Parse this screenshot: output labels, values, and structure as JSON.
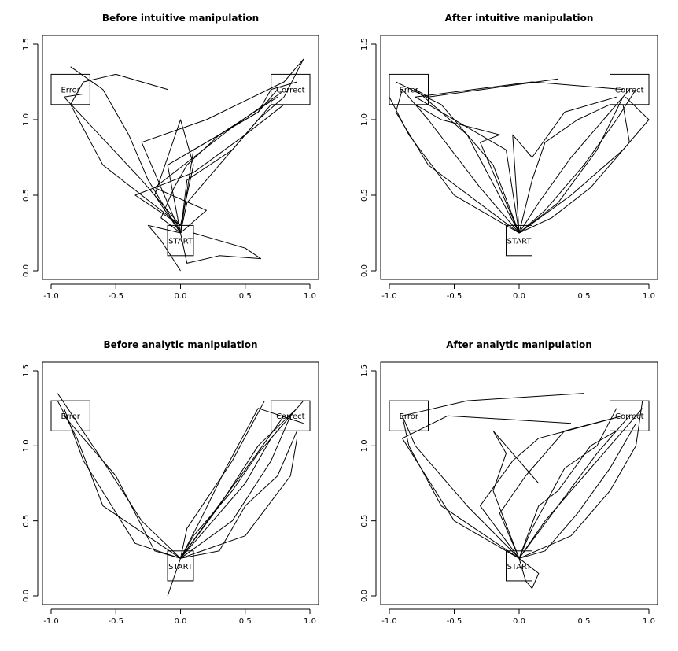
{
  "chart_data": [
    {
      "type": "line",
      "title": "Before intuitive manipulation",
      "xlim": [
        -1.0,
        1.0
      ],
      "ylim": [
        0.0,
        1.5
      ],
      "x_ticks": [
        "-1.0",
        "-0.5",
        "0.0",
        "0.5",
        "1.0"
      ],
      "y_ticks": [
        "0.0",
        "0.5",
        "1.0",
        "1.5"
      ],
      "boxes": [
        {
          "label": "Error",
          "x": [
            -1.0,
            -0.7
          ],
          "y": [
            1.1,
            1.3
          ]
        },
        {
          "label": "Correct",
          "x": [
            0.7,
            1.0
          ],
          "y": [
            1.1,
            1.3
          ]
        },
        {
          "label": "START",
          "x": [
            -0.1,
            0.1
          ],
          "y": [
            0.1,
            0.3
          ]
        }
      ],
      "series": [
        {
          "x": [
            0.0,
            -0.3,
            -0.9,
            -0.75
          ],
          "y": [
            0.3,
            0.6,
            1.15,
            1.17
          ]
        },
        {
          "x": [
            0.0,
            0.1,
            0.6,
            0.7,
            0.9
          ],
          "y": [
            0.25,
            0.8,
            1.05,
            1.2,
            1.25
          ]
        },
        {
          "x": [
            0.0,
            -0.25,
            -0.4,
            -0.6,
            -0.85
          ],
          "y": [
            0.25,
            0.6,
            0.9,
            1.2,
            1.35
          ]
        },
        {
          "x": [
            0.0,
            -0.1,
            0.2,
            0.6,
            0.75
          ],
          "y": [
            0.25,
            0.7,
            0.85,
            1.05,
            1.2
          ]
        },
        {
          "x": [
            0.0,
            0.05,
            0.3,
            0.62,
            0.5,
            0.1
          ],
          "y": [
            0.25,
            0.05,
            0.1,
            0.08,
            0.15,
            0.25
          ]
        },
        {
          "x": [
            0.0,
            -0.2,
            -0.1,
            0.0,
            0.1,
            0.0
          ],
          "y": [
            0.25,
            0.5,
            0.75,
            1.0,
            0.7,
            0.3
          ]
        },
        {
          "x": [
            0.0,
            -0.3,
            0.2,
            0.8,
            0.95,
            0.8
          ],
          "y": [
            0.25,
            0.85,
            1.0,
            1.25,
            1.4,
            1.15
          ]
        },
        {
          "x": [
            0.0,
            0.05,
            0.4,
            0.6,
            0.8
          ],
          "y": [
            0.25,
            0.6,
            0.8,
            1.0,
            1.15
          ]
        },
        {
          "x": [
            0.0,
            -0.35,
            0.1,
            0.5,
            0.8
          ],
          "y": [
            0.3,
            0.5,
            0.65,
            0.9,
            1.1
          ]
        },
        {
          "x": [
            0.0,
            -0.15,
            -0.05,
            0.05,
            0.3,
            0.75
          ],
          "y": [
            0.25,
            0.35,
            0.55,
            0.7,
            0.9,
            1.15
          ]
        },
        {
          "x": [
            0.0,
            0.2,
            -0.2,
            0.1,
            0.4,
            0.78
          ],
          "y": [
            0.25,
            0.4,
            0.55,
            0.75,
            0.95,
            1.18
          ]
        },
        {
          "x": [
            0.0,
            -0.25,
            -0.15,
            0.0
          ],
          "y": [
            0.25,
            0.3,
            0.2,
            0.0
          ]
        },
        {
          "x": [
            0.0,
            -0.6,
            -0.85,
            -0.75,
            -0.5,
            -0.1
          ],
          "y": [
            0.3,
            0.7,
            1.1,
            1.25,
            1.3,
            1.2
          ]
        },
        {
          "x": [
            0.0,
            0.05,
            0.25,
            0.55,
            0.7
          ],
          "y": [
            0.25,
            0.45,
            0.65,
            0.95,
            1.1
          ]
        }
      ]
    },
    {
      "type": "line",
      "title": "After intuitive manipulation",
      "xlim": [
        -1.0,
        1.0
      ],
      "ylim": [
        0.0,
        1.5
      ],
      "x_ticks": [
        "-1.0",
        "-0.5",
        "0.0",
        "0.5",
        "1.0"
      ],
      "y_ticks": [
        "0.0",
        "0.5",
        "1.0",
        "1.5"
      ],
      "boxes": [
        {
          "label": "Error",
          "x": [
            -1.0,
            -0.7
          ],
          "y": [
            1.1,
            1.3
          ]
        },
        {
          "label": "Correct",
          "x": [
            0.7,
            1.0
          ],
          "y": [
            1.1,
            1.3
          ]
        },
        {
          "label": "START",
          "x": [
            -0.1,
            0.1
          ],
          "y": [
            0.1,
            0.3
          ]
        }
      ],
      "series": [
        {
          "x": [
            0.0,
            -0.3,
            -0.7,
            -0.9
          ],
          "y": [
            0.25,
            0.55,
            1.0,
            1.2
          ]
        },
        {
          "x": [
            0.0,
            0.3,
            0.6,
            0.8
          ],
          "y": [
            0.25,
            0.45,
            0.8,
            1.15
          ]
        },
        {
          "x": [
            0.0,
            -0.2,
            -0.6,
            -0.95
          ],
          "y": [
            0.25,
            0.7,
            1.1,
            1.25
          ]
        },
        {
          "x": [
            0.0,
            0.2,
            0.5,
            0.75,
            0.9
          ],
          "y": [
            0.25,
            0.4,
            0.7,
            1.0,
            1.2
          ]
        },
        {
          "x": [
            0.0,
            -0.5,
            -0.85,
            -1.0
          ],
          "y": [
            0.25,
            0.5,
            0.9,
            1.15
          ]
        },
        {
          "x": [
            0.0,
            0.4,
            0.8,
            1.0,
            0.82
          ],
          "y": [
            0.25,
            0.5,
            0.8,
            1.0,
            1.15
          ]
        },
        {
          "x": [
            0.0,
            -0.4,
            -0.8,
            -0.7,
            0.3
          ],
          "y": [
            0.25,
            0.9,
            1.2,
            1.15,
            1.27
          ]
        },
        {
          "x": [
            0.0,
            -0.1,
            -0.6,
            -0.8,
            0.1,
            0.8
          ],
          "y": [
            0.25,
            0.8,
            1.05,
            1.15,
            1.25,
            1.2
          ]
        },
        {
          "x": [
            0.0,
            0.1,
            0.2,
            0.45,
            0.7
          ],
          "y": [
            0.25,
            0.6,
            0.85,
            1.0,
            1.1
          ]
        },
        {
          "x": [
            0.0,
            -0.05,
            0.1,
            0.35,
            0.75
          ],
          "y": [
            0.25,
            0.9,
            0.75,
            1.05,
            1.15
          ]
        },
        {
          "x": [
            0.0,
            -0.3,
            -0.15,
            -0.6,
            -0.8
          ],
          "y": [
            0.25,
            0.85,
            0.9,
            1.0,
            1.1
          ]
        },
        {
          "x": [
            0.0,
            0.25,
            0.55,
            0.85,
            0.8
          ],
          "y": [
            0.25,
            0.35,
            0.55,
            0.85,
            1.1
          ]
        },
        {
          "x": [
            0.0,
            -0.7,
            -0.95,
            -0.9
          ],
          "y": [
            0.25,
            0.7,
            1.05,
            1.2
          ]
        },
        {
          "x": [
            0.0,
            0.15,
            0.4,
            0.65,
            0.85
          ],
          "y": [
            0.25,
            0.45,
            0.75,
            1.0,
            1.2
          ]
        }
      ]
    },
    {
      "type": "line",
      "title": "Before analytic manipulation",
      "xlim": [
        -1.0,
        1.0
      ],
      "ylim": [
        0.0,
        1.5
      ],
      "x_ticks": [
        "-1.0",
        "-0.5",
        "0.0",
        "0.5",
        "1.0"
      ],
      "y_ticks": [
        "0.0",
        "0.5",
        "1.0",
        "1.5"
      ],
      "boxes": [
        {
          "label": "Error",
          "x": [
            -1.0,
            -0.7
          ],
          "y": [
            1.1,
            1.3
          ]
        },
        {
          "label": "Correct",
          "x": [
            0.7,
            1.0
          ],
          "y": [
            1.1,
            1.3
          ]
        },
        {
          "label": "START",
          "x": [
            -0.1,
            0.1
          ],
          "y": [
            0.1,
            0.3
          ]
        }
      ],
      "series": [
        {
          "x": [
            0.0,
            -0.3,
            -0.6,
            -0.95
          ],
          "y": [
            0.25,
            0.5,
            0.9,
            1.35
          ]
        },
        {
          "x": [
            0.0,
            0.3,
            0.6,
            0.9
          ],
          "y": [
            0.25,
            0.6,
            1.0,
            1.25
          ]
        },
        {
          "x": [
            0.0,
            -0.35,
            -0.75,
            -0.9
          ],
          "y": [
            0.25,
            0.35,
            0.9,
            1.25
          ]
        },
        {
          "x": [
            0.0,
            0.2,
            0.5,
            0.7,
            0.95
          ],
          "y": [
            0.25,
            0.45,
            0.75,
            1.05,
            1.3
          ]
        },
        {
          "x": [
            0.0,
            -0.2,
            -0.5,
            -0.9
          ],
          "y": [
            0.25,
            0.3,
            0.8,
            1.2
          ]
        },
        {
          "x": [
            0.0,
            0.4,
            0.7,
            0.85
          ],
          "y": [
            0.25,
            0.5,
            0.9,
            1.2
          ]
        },
        {
          "x": [
            0.0,
            -0.1
          ],
          "y": [
            0.25,
            0.0
          ]
        },
        {
          "x": [
            0.0,
            0.1,
            0.4,
            0.6,
            0.8
          ],
          "y": [
            0.25,
            0.4,
            0.7,
            0.95,
            1.15
          ]
        },
        {
          "x": [
            0.0,
            0.3,
            0.5,
            0.75,
            0.9
          ],
          "y": [
            0.25,
            0.3,
            0.6,
            0.8,
            1.1
          ]
        },
        {
          "x": [
            0.0,
            0.15,
            0.35,
            0.6,
            0.95
          ],
          "y": [
            0.25,
            0.5,
            0.85,
            1.25,
            1.15
          ]
        },
        {
          "x": [
            0.0,
            -0.6,
            -0.8,
            -0.95
          ],
          "y": [
            0.25,
            0.6,
            1.05,
            1.3
          ]
        },
        {
          "x": [
            0.0,
            0.25,
            0.55,
            0.8
          ],
          "y": [
            0.25,
            0.55,
            0.9,
            1.2
          ]
        },
        {
          "x": [
            0.0,
            0.05,
            0.4,
            0.65
          ],
          "y": [
            0.25,
            0.45,
            0.9,
            1.3
          ]
        },
        {
          "x": [
            0.0,
            0.5,
            0.85,
            0.9
          ],
          "y": [
            0.25,
            0.4,
            0.8,
            1.05
          ]
        }
      ]
    },
    {
      "type": "line",
      "title": "After analytic manipulation",
      "xlim": [
        -1.0,
        1.0
      ],
      "ylim": [
        0.0,
        1.5
      ],
      "x_ticks": [
        "-1.0",
        "-0.5",
        "0.0",
        "0.5",
        "1.0"
      ],
      "y_ticks": [
        "0.0",
        "0.5",
        "1.0",
        "1.5"
      ],
      "boxes": [
        {
          "label": "Error",
          "x": [
            -1.0,
            -0.7
          ],
          "y": [
            1.1,
            1.3
          ]
        },
        {
          "label": "Correct",
          "x": [
            0.7,
            1.0
          ],
          "y": [
            1.1,
            1.3
          ]
        },
        {
          "label": "START",
          "x": [
            -0.1,
            0.1
          ],
          "y": [
            0.1,
            0.3
          ]
        }
      ],
      "series": [
        {
          "x": [
            0.0,
            -0.4,
            -0.8,
            -0.9
          ],
          "y": [
            0.25,
            0.6,
            1.0,
            1.2
          ]
        },
        {
          "x": [
            0.0,
            0.3,
            0.6,
            0.85
          ],
          "y": [
            0.25,
            0.6,
            0.95,
            1.2
          ]
        },
        {
          "x": [
            0.0,
            -0.6,
            -0.85,
            -0.9,
            -0.4,
            0.5
          ],
          "y": [
            0.25,
            0.6,
            1.0,
            1.2,
            1.3,
            1.35
          ]
        },
        {
          "x": [
            0.0,
            -0.2,
            -0.1,
            -0.2,
            0.15
          ],
          "y": [
            0.25,
            0.7,
            0.95,
            1.1,
            0.75
          ]
        },
        {
          "x": [
            0.0,
            0.2,
            0.5,
            0.75,
            0.95
          ],
          "y": [
            0.25,
            0.5,
            0.8,
            1.05,
            1.25
          ]
        },
        {
          "x": [
            0.0,
            0.15,
            0.1,
            0.05,
            0.0
          ],
          "y": [
            0.25,
            0.15,
            0.05,
            0.1,
            0.25
          ]
        },
        {
          "x": [
            0.0,
            -0.3,
            -0.05,
            0.15,
            0.8
          ],
          "y": [
            0.25,
            0.6,
            0.9,
            1.05,
            1.2
          ]
        },
        {
          "x": [
            0.0,
            -0.5,
            -0.9,
            -0.55,
            0.4
          ],
          "y": [
            0.25,
            0.5,
            1.05,
            1.2,
            1.15
          ]
        },
        {
          "x": [
            0.0,
            0.4,
            0.7,
            0.9,
            0.95
          ],
          "y": [
            0.25,
            0.4,
            0.7,
            1.0,
            1.3
          ]
        },
        {
          "x": [
            0.0,
            0.1,
            0.35,
            0.6,
            0.75
          ],
          "y": [
            0.25,
            0.45,
            0.85,
            1.0,
            1.25
          ]
        },
        {
          "x": [
            0.0,
            0.2,
            0.45,
            0.7,
            0.9
          ],
          "y": [
            0.25,
            0.3,
            0.55,
            0.85,
            1.15
          ]
        },
        {
          "x": [
            0.0,
            0.15,
            0.3,
            0.55,
            0.75
          ],
          "y": [
            0.25,
            0.6,
            0.7,
            1.0,
            1.1
          ]
        },
        {
          "x": [
            0.0,
            -0.15,
            0.05,
            0.35,
            0.8
          ],
          "y": [
            0.25,
            0.55,
            0.8,
            1.1,
            1.2
          ]
        }
      ]
    }
  ]
}
